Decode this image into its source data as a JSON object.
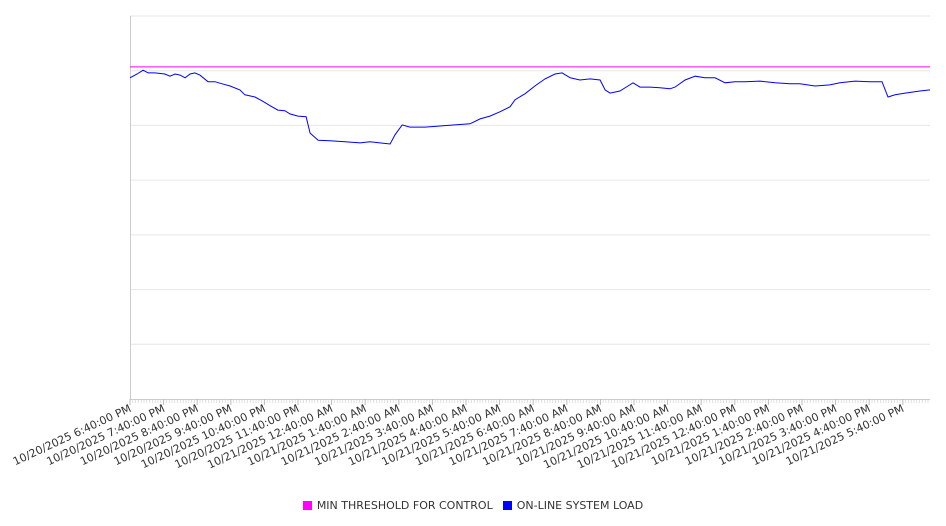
{
  "chart_data": {
    "type": "line",
    "title": "",
    "xlabel": "",
    "ylabel": "",
    "ylim": [
      0,
      7
    ],
    "xlim_hours_from_start": [
      0,
      23.81
    ],
    "grid": true,
    "legend_placement": "bottom-center",
    "x_tick_labels": [
      "10/20/2025 6:40:00 PM",
      "10/20/2025 7:40:00 PM",
      "10/20/2025 8:40:00 PM",
      "10/20/2025 9:40:00 PM",
      "10/20/2025 10:40:00 PM",
      "10/20/2025 11:40:00 PM",
      "10/21/2025 12:40:00 AM",
      "10/21/2025 1:40:00 AM",
      "10/21/2025 2:40:00 AM",
      "10/21/2025 3:40:00 AM",
      "10/21/2025 4:40:00 AM",
      "10/21/2025 5:40:00 AM",
      "10/21/2025 6:40:00 AM",
      "10/21/2025 7:40:00 AM",
      "10/21/2025 8:40:00 AM",
      "10/21/2025 9:40:00 AM",
      "10/21/2025 10:40:00 AM",
      "10/21/2025 11:40:00 AM",
      "10/21/2025 12:40:00 PM",
      "10/21/2025 1:40:00 PM",
      "10/21/2025 2:40:00 PM",
      "10/21/2025 3:40:00 PM",
      "10/21/2025 4:40:00 PM",
      "10/21/2025 5:40:00 PM"
    ],
    "series": [
      {
        "name": "MIN THRESHOLD FOR CONTROL",
        "color": "#ff00ff",
        "constant": 6.07
      },
      {
        "name": "ON-LINE SYSTEM LOAD",
        "color": "#0000ff",
        "points": [
          [
            0,
            5.87
          ],
          [
            0.21,
            5.94
          ],
          [
            0.39,
            6.01
          ],
          [
            0.54,
            5.96
          ],
          [
            0.74,
            5.96
          ],
          [
            1.04,
            5.94
          ],
          [
            1.19,
            5.9
          ],
          [
            1.34,
            5.94
          ],
          [
            1.49,
            5.92
          ],
          [
            1.64,
            5.87
          ],
          [
            1.79,
            5.94
          ],
          [
            1.93,
            5.96
          ],
          [
            2.08,
            5.92
          ],
          [
            2.32,
            5.8
          ],
          [
            2.53,
            5.8
          ],
          [
            2.74,
            5.76
          ],
          [
            2.98,
            5.72
          ],
          [
            3.27,
            5.65
          ],
          [
            3.42,
            5.56
          ],
          [
            3.72,
            5.52
          ],
          [
            3.93,
            5.45
          ],
          [
            4.17,
            5.36
          ],
          [
            4.4,
            5.28
          ],
          [
            4.61,
            5.27
          ],
          [
            4.76,
            5.21
          ],
          [
            5.0,
            5.17
          ],
          [
            5.24,
            5.16
          ],
          [
            5.36,
            4.86
          ],
          [
            5.6,
            4.73
          ],
          [
            5.95,
            4.72
          ],
          [
            6.4,
            4.7
          ],
          [
            6.85,
            4.68
          ],
          [
            7.14,
            4.7
          ],
          [
            7.44,
            4.68
          ],
          [
            7.74,
            4.66
          ],
          [
            7.89,
            4.83
          ],
          [
            8.1,
            5.01
          ],
          [
            8.33,
            4.97
          ],
          [
            8.78,
            4.97
          ],
          [
            9.23,
            4.99
          ],
          [
            9.67,
            5.01
          ],
          [
            10.12,
            5.03
          ],
          [
            10.42,
            5.12
          ],
          [
            10.71,
            5.17
          ],
          [
            11.01,
            5.25
          ],
          [
            11.31,
            5.34
          ],
          [
            11.46,
            5.47
          ],
          [
            11.76,
            5.58
          ],
          [
            12.05,
            5.72
          ],
          [
            12.35,
            5.85
          ],
          [
            12.65,
            5.94
          ],
          [
            12.86,
            5.96
          ],
          [
            13.1,
            5.87
          ],
          [
            13.39,
            5.83
          ],
          [
            13.69,
            5.85
          ],
          [
            13.99,
            5.83
          ],
          [
            14.14,
            5.65
          ],
          [
            14.29,
            5.59
          ],
          [
            14.58,
            5.63
          ],
          [
            14.82,
            5.72
          ],
          [
            14.97,
            5.78
          ],
          [
            15.18,
            5.7
          ],
          [
            15.48,
            5.7
          ],
          [
            15.77,
            5.69
          ],
          [
            16.07,
            5.67
          ],
          [
            16.22,
            5.7
          ],
          [
            16.52,
            5.83
          ],
          [
            16.82,
            5.9
          ],
          [
            17.11,
            5.87
          ],
          [
            17.41,
            5.87
          ],
          [
            17.71,
            5.78
          ],
          [
            18.01,
            5.8
          ],
          [
            18.3,
            5.8
          ],
          [
            18.75,
            5.81
          ],
          [
            19.2,
            5.78
          ],
          [
            19.64,
            5.76
          ],
          [
            19.94,
            5.76
          ],
          [
            20.39,
            5.72
          ],
          [
            20.83,
            5.74
          ],
          [
            21.13,
            5.78
          ],
          [
            21.58,
            5.81
          ],
          [
            22.02,
            5.8
          ],
          [
            22.38,
            5.8
          ],
          [
            22.56,
            5.52
          ],
          [
            22.77,
            5.56
          ],
          [
            23.07,
            5.59
          ],
          [
            23.51,
            5.63
          ],
          [
            23.81,
            5.65
          ]
        ]
      }
    ]
  },
  "legend": {
    "items": [
      {
        "label": "MIN THRESHOLD FOR CONTROL",
        "color": "#ff00ff"
      },
      {
        "label": "ON-LINE SYSTEM LOAD",
        "color": "#0000ff"
      }
    ]
  }
}
